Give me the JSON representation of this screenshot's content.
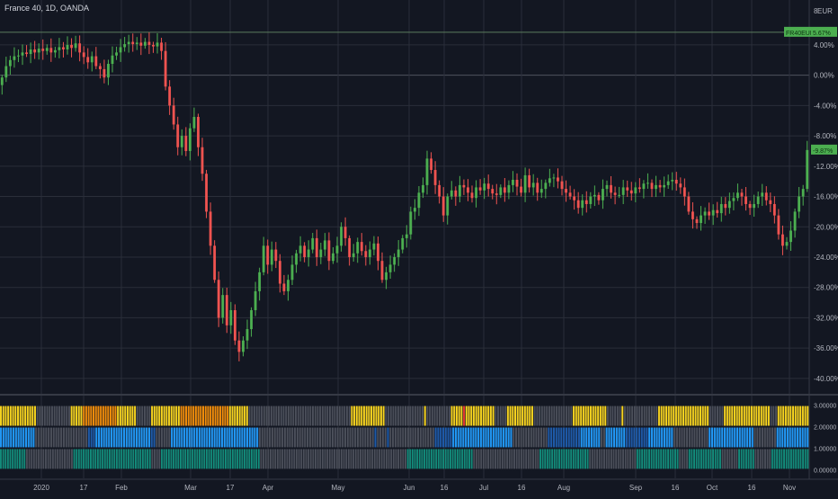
{
  "header": {
    "symbol_line": "France 40, 1D, OANDA"
  },
  "indicator": {
    "label": ""
  },
  "colors": {
    "background": "#131722",
    "grid": "#2a2e39",
    "text": "#b2b5be",
    "up": "#4caf50",
    "down": "#ef5350",
    "badge": "#4caf50",
    "stripe_gray": "#4a4e59",
    "stripe_yellow": "#f5d21f",
    "stripe_orange": "#f08c0a",
    "stripe_blue": "#2196f3",
    "stripe_dark_blue": "#1e5aa8",
    "stripe_teal": "#138b7a",
    "stripe_red": "#e53935"
  },
  "chart_data": [
    {
      "type": "candlestick",
      "title": "France 40, 1D, OANDA",
      "y_unit": "%",
      "yaxis_currency": "EUR",
      "ylim": [
        -42,
        8.5
      ],
      "y_ticks": [
        4,
        0,
        -4,
        -8,
        -12,
        -16,
        -20,
        -24,
        -28,
        -32,
        -36,
        -40
      ],
      "y_tick_labels": [
        "4.00%",
        "0.00%",
        "-4.00%",
        "-8.00%",
        "-12.00%",
        "-16.00%",
        "-20.00%",
        "-24.00%",
        "-28.00%",
        "-32.00%",
        "-36.00%",
        "-40.00%"
      ],
      "top_tick_label": "8",
      "x_labels": [
        "2020",
        "17",
        "Feb",
        "Mar",
        "17",
        "Apr",
        "May",
        "Jun",
        "16",
        "Jul",
        "16",
        "Aug",
        "Sep",
        "16",
        "Oct",
        "16",
        "Nov"
      ],
      "grid": true,
      "reference_line": {
        "label": "FR40EUR",
        "value_label": "5.67%",
        "value": 5.67
      },
      "last_value": {
        "label": "-9.87%",
        "value": -9.87
      },
      "close": [
        -0.3,
        1.2,
        2.0,
        2.5,
        2.6,
        3.0,
        2.8,
        3.4,
        3.0,
        3.5,
        3.2,
        3.6,
        3.0,
        3.3,
        3.7,
        3.4,
        4.0,
        3.6,
        4.2,
        3.0,
        2.4,
        1.7,
        2.5,
        1.2,
        0.8,
        -0.3,
        1.5,
        2.6,
        3.0,
        3.7,
        4.1,
        4.4,
        4.1,
        4.3,
        3.9,
        4.4,
        4.0,
        3.8,
        4.3,
        3.2,
        -1.5,
        -4.0,
        -6.5,
        -9.5,
        -8.0,
        -10.0,
        -7.0,
        -5.5,
        -9.5,
        -13.0,
        -18.0,
        -22.5,
        -27.0,
        -32.0,
        -29.0,
        -33.0,
        -31.0,
        -35.0,
        -36.5,
        -35.0,
        -33.5,
        -31.0,
        -28.5,
        -26.0,
        -22.5,
        -25.0,
        -23.0,
        -24.5,
        -27.5,
        -28.5,
        -27.0,
        -25.0,
        -23.5,
        -22.5,
        -24.0,
        -23.0,
        -21.5,
        -24.0,
        -23.0,
        -21.8,
        -24.5,
        -23.5,
        -22.5,
        -20.0,
        -21.5,
        -24.0,
        -23.5,
        -22.0,
        -23.2,
        -24.0,
        -23.0,
        -22.2,
        -24.5,
        -27.0,
        -26.0,
        -25.0,
        -24.0,
        -23.0,
        -21.5,
        -21.0,
        -18.0,
        -17.5,
        -15.5,
        -14.5,
        -11.0,
        -12.5,
        -14.5,
        -16.0,
        -18.5,
        -16.0,
        -15.2,
        -16.0,
        -14.5,
        -14.8,
        -15.5,
        -16.2,
        -14.8,
        -15.2,
        -14.3,
        -15.0,
        -15.6,
        -15.8,
        -14.8,
        -15.5,
        -14.5,
        -13.8,
        -14.7,
        -15.5,
        -13.2,
        -14.8,
        -14.2,
        -15.5,
        -15.0,
        -14.2,
        -13.6,
        -13.5,
        -14.0,
        -15.0,
        -15.5,
        -16.0,
        -16.5,
        -17.5,
        -16.5,
        -17.0,
        -16.0,
        -15.8,
        -16.5,
        -15.0,
        -14.5,
        -15.5,
        -15.8,
        -15.8,
        -14.8,
        -15.2,
        -15.6,
        -14.8,
        -15.0,
        -14.3,
        -14.2,
        -15.0,
        -14.5,
        -14.8,
        -14.5,
        -14.0,
        -13.8,
        -14.3,
        -14.8,
        -16.0,
        -18.0,
        -19.0,
        -19.5,
        -18.5,
        -18.0,
        -18.5,
        -17.8,
        -18.2,
        -17.0,
        -17.5,
        -16.6,
        -16.2,
        -15.5,
        -16.0,
        -17.0,
        -17.5,
        -17.0,
        -16.0,
        -15.5,
        -16.5,
        -17.0,
        -18.5,
        -21.0,
        -22.5,
        -22.0,
        -20.5,
        -18.0,
        -16.0,
        -15.0,
        -9.87
      ]
    },
    {
      "type": "bar",
      "subtype": "stacked-stripes",
      "y_ticks": [
        3,
        2,
        1,
        0
      ],
      "y_tick_labels": [
        "3.00000",
        "2.00000",
        "1.00000",
        "0.00000"
      ],
      "ylim": [
        -0.4,
        3.4
      ],
      "note": "three rows per bar: top row spans 2-3, middle 1-2, bottom 0-1",
      "rows": {
        "top": "yyyyyyyyyyyyyyyggggggggggggggyyyyyooooooooooooooyyyyyyyyggggggyyyyyyyyyyyyooooooooooooooooooooyyyyyyyyggggggggggggggggggggggggggggggggggggggggggyyyyyyyyyyyyyyggggggggggggggggyggggggggggyyyyyryyyyyyyyyyyygggggyyyyyyyyyyyggggggggggggggggyyyyyyyyyyyyyyggggggyggggggggggggggyyyyyyyyyyyyyyyyyyyyyggggggyyyyyyyyyyyyyyyyyyygggyyyyyyyyyyyyy",
        "middle": "bbbbbbbbbbbbbbgggggggggggggggggggggdddbbbbbbbbbbbbbbbbbbbbbbddggggggbbbbbbbbbbbbbbbbbbbbbbbbbbbbbbbbbbbggggggggggggggggggggggggggggggggggggggggggggggdggggdggggggggggggggggggdddddddbbbbbbbbbbbbbbbbbbbbbbbbggggggggggggggdddddddddddddbbbbbbbbggbbbbbbbbdddddddddbbbbbbbbbbggggggggggggggbbbbbbbbbbbbbbbbbbgggggggggbbbbbbbbbbbbb",
        "bottom": "tttttttttttggggggggggggggggggggtttttttttttttttttttttttttttttttttggggttttttttttttttttttttttttttttttttttttttttttggggggggggggggggggggggggggggggggggggggggggggggggggggggggggggggttttttttttttttttttttttttttttggggggggggggggggggggggggggggtttttttttttttttttttttggggggggggggggggggggttttttttttttttttttggggttttttttttttttgggggggtttttttgggggggtttttttttttttttt"
      }
    }
  ]
}
